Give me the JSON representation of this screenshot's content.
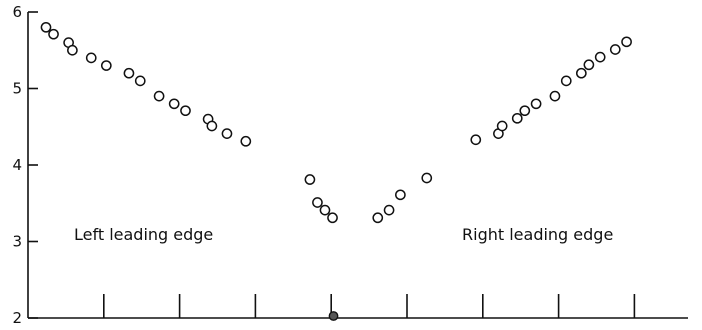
{
  "chart_data": {
    "type": "scatter",
    "title": "",
    "xlabel": "",
    "ylabel": "",
    "ylim": [
      2,
      6
    ],
    "y_ticks": [
      "2",
      "3",
      "4",
      "5",
      "6"
    ],
    "x_major_ticks": 8,
    "marker_style": "open-circle",
    "center_marker_style": "filled-circle",
    "annotations": [
      {
        "id": "left",
        "text": "Left leading edge"
      },
      {
        "id": "right",
        "text": "Right leading edge"
      }
    ],
    "series": [
      {
        "values": [
          [
            0.0,
            5.8
          ],
          [
            0.1,
            5.71
          ],
          [
            0.3,
            5.6
          ],
          [
            0.35,
            5.5
          ],
          [
            0.6,
            5.4
          ],
          [
            0.8,
            5.3
          ],
          [
            1.1,
            5.2
          ],
          [
            1.25,
            5.1
          ],
          [
            1.5,
            4.9
          ],
          [
            1.7,
            4.8
          ],
          [
            1.85,
            4.71
          ],
          [
            2.15,
            4.6
          ],
          [
            2.2,
            4.51
          ],
          [
            2.4,
            4.41
          ],
          [
            2.65,
            4.31
          ],
          [
            3.5,
            3.81
          ],
          [
            3.6,
            3.51
          ],
          [
            3.7,
            3.41
          ],
          [
            3.8,
            3.31
          ],
          [
            4.4,
            3.31
          ],
          [
            4.55,
            3.41
          ],
          [
            4.7,
            3.61
          ],
          [
            5.05,
            3.83
          ],
          [
            5.7,
            4.33
          ],
          [
            6.0,
            4.41
          ],
          [
            6.05,
            4.51
          ],
          [
            6.25,
            4.61
          ],
          [
            6.35,
            4.71
          ],
          [
            6.5,
            4.8
          ],
          [
            6.75,
            4.9
          ],
          [
            6.9,
            5.1
          ],
          [
            7.1,
            5.2
          ],
          [
            7.2,
            5.31
          ],
          [
            7.35,
            5.41
          ],
          [
            7.55,
            5.51
          ],
          [
            7.7,
            5.61
          ]
        ]
      }
    ],
    "center_point": [
      3.8,
      2.0
    ]
  }
}
